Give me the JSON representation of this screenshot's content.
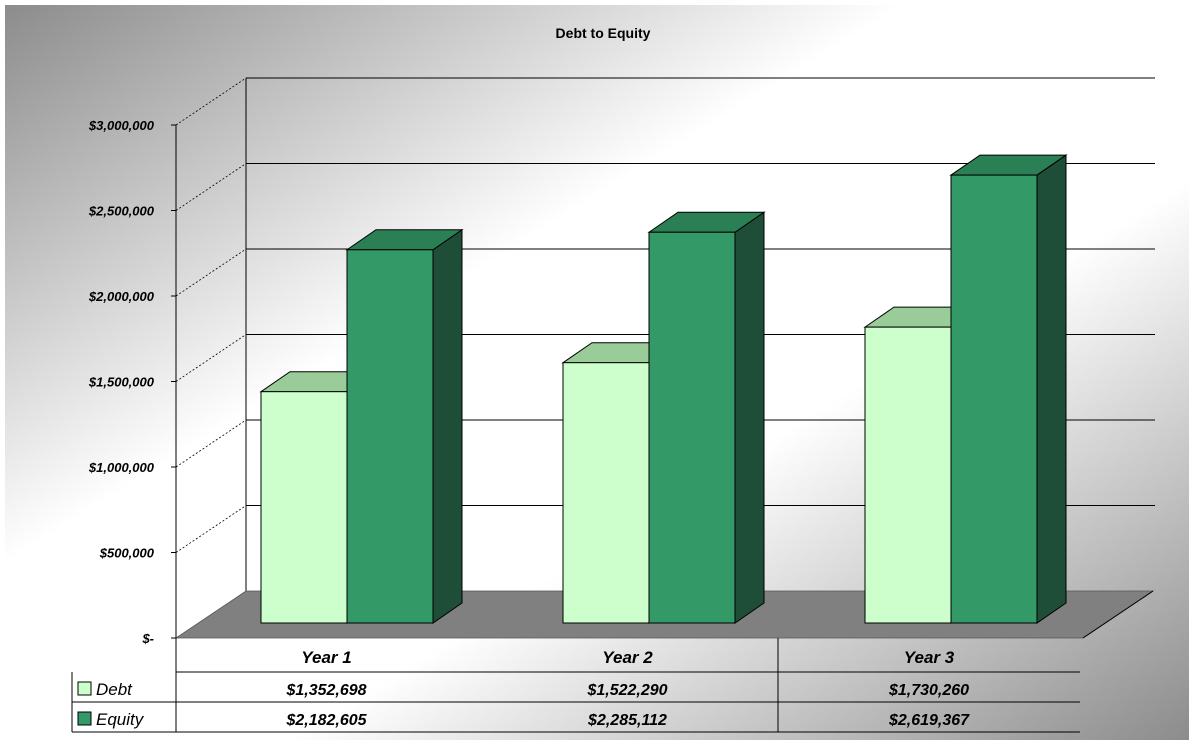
{
  "chart_data": {
    "type": "bar",
    "title": "Debt to Equity",
    "categories": [
      "Year 1",
      "Year 2",
      "Year 3"
    ],
    "series": [
      {
        "name": "Debt",
        "values": [
          1352698,
          1522290,
          1730260
        ],
        "labels": [
          "$1,352,698",
          "$1,522,290",
          "$1,730,260"
        ],
        "color": "#ccffcc"
      },
      {
        "name": "Equity",
        "values": [
          2182605,
          2285112,
          2619367
        ],
        "labels": [
          "$2,182,605",
          "$2,285,112",
          "$2,619,367"
        ],
        "color": "#339966"
      }
    ],
    "ylim": [
      0,
      3000000
    ],
    "yticks": [
      0,
      500000,
      1000000,
      1500000,
      2000000,
      2500000,
      3000000
    ],
    "ytick_labels": [
      "$-",
      "$500,000",
      "$1,000,000",
      "$1,500,000",
      "$2,000,000",
      "$2,500,000",
      "$3,000,000"
    ],
    "xlabel": "",
    "ylabel": "",
    "grid": true,
    "legend": "data-table-left"
  }
}
